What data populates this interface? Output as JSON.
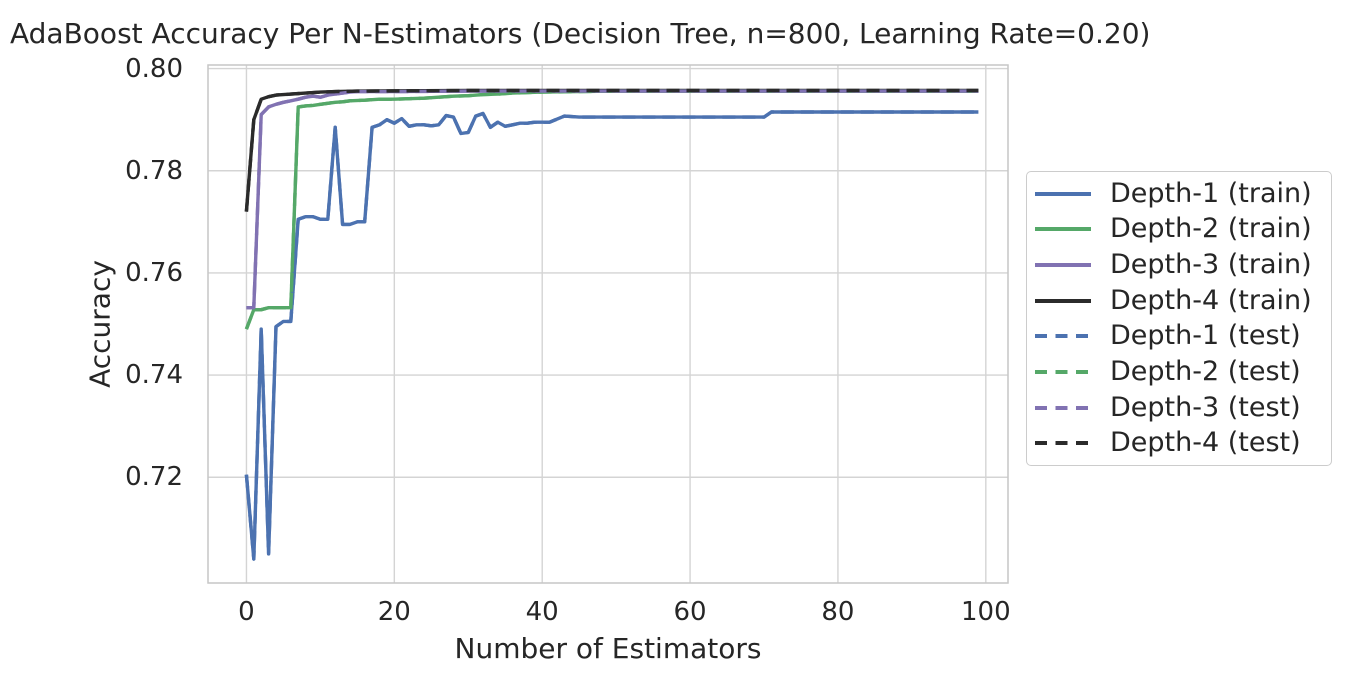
{
  "chart_data": {
    "type": "line",
    "title": "AdaBoost Accuracy Per N-Estimators (Decision Tree, n=800, Learning Rate=0.20)",
    "xlabel": "Number of Estimators",
    "ylabel": "Accuracy",
    "xlim": [
      -5.2,
      103
    ],
    "ylim": [
      0.6993,
      0.8007
    ],
    "xticks": [
      0,
      20,
      40,
      60,
      80,
      100
    ],
    "xtick_labels": [
      "0",
      "20",
      "40",
      "60",
      "80",
      "100"
    ],
    "yticks": [
      0.72,
      0.74,
      0.76,
      0.78,
      0.8
    ],
    "ytick_labels": [
      "0.72",
      "0.74",
      "0.76",
      "0.78",
      "0.80"
    ],
    "grid": true,
    "legend_position": "right-outside",
    "style": {
      "text_color": "#262626",
      "grid_color": "#d4d4d4",
      "spine_color": "#c6c6c6",
      "background": "#ffffff",
      "legend_border": "#cccccc"
    },
    "series": [
      {
        "name": "Depth-1 (train)",
        "color": "#4C72B0",
        "dash": false,
        "role": "train",
        "points": [
          [
            0,
            0.7205
          ],
          [
            1,
            0.704
          ],
          [
            2,
            0.749
          ],
          [
            3,
            0.705
          ],
          [
            4,
            0.7495
          ],
          [
            5,
            0.7505
          ],
          [
            6,
            0.7505
          ],
          [
            7,
            0.7705
          ],
          [
            8,
            0.771
          ],
          [
            9,
            0.771
          ],
          [
            10,
            0.7705
          ],
          [
            11,
            0.7705
          ],
          [
            12,
            0.7885
          ],
          [
            13,
            0.7695
          ],
          [
            14,
            0.7695
          ],
          [
            15,
            0.77
          ],
          [
            16,
            0.77
          ],
          [
            17,
            0.7885
          ],
          [
            18,
            0.789
          ],
          [
            19,
            0.79
          ],
          [
            20,
            0.7893
          ],
          [
            21,
            0.7902
          ],
          [
            22,
            0.7887
          ],
          [
            23,
            0.789
          ],
          [
            24,
            0.789
          ],
          [
            25,
            0.7888
          ],
          [
            26,
            0.789
          ],
          [
            27,
            0.7908
          ],
          [
            28,
            0.7905
          ],
          [
            29,
            0.7873
          ],
          [
            30,
            0.7875
          ],
          [
            31,
            0.7907
          ],
          [
            32,
            0.7912
          ],
          [
            33,
            0.7885
          ],
          [
            34,
            0.7895
          ],
          [
            35,
            0.7887
          ],
          [
            36,
            0.789
          ],
          [
            37,
            0.7893
          ],
          [
            38,
            0.7893
          ],
          [
            39,
            0.7895
          ],
          [
            41,
            0.7895
          ],
          [
            43,
            0.7907
          ],
          [
            45,
            0.7905
          ],
          [
            48,
            0.7905
          ],
          [
            52,
            0.7905
          ],
          [
            56,
            0.7905
          ],
          [
            60,
            0.7905
          ],
          [
            64,
            0.7905
          ],
          [
            68,
            0.7905
          ],
          [
            70,
            0.7905
          ],
          [
            71,
            0.7915
          ],
          [
            75,
            0.7915
          ],
          [
            80,
            0.7915
          ],
          [
            85,
            0.7915
          ],
          [
            90,
            0.7915
          ],
          [
            95,
            0.7915
          ],
          [
            99,
            0.7915
          ]
        ]
      },
      {
        "name": "Depth-2 (train)",
        "color": "#55A868",
        "dash": false,
        "role": "train",
        "points": [
          [
            0,
            0.749
          ],
          [
            1,
            0.7528
          ],
          [
            2,
            0.7528
          ],
          [
            3,
            0.7532
          ],
          [
            4,
            0.7532
          ],
          [
            5,
            0.7532
          ],
          [
            6,
            0.7532
          ],
          [
            7,
            0.7925
          ],
          [
            8,
            0.7927
          ],
          [
            9,
            0.7928
          ],
          [
            10,
            0.793
          ],
          [
            11,
            0.7932
          ],
          [
            12,
            0.7934
          ],
          [
            13,
            0.7935
          ],
          [
            14,
            0.7937
          ],
          [
            16,
            0.7938
          ],
          [
            18,
            0.794
          ],
          [
            20,
            0.794
          ],
          [
            22,
            0.7941
          ],
          [
            24,
            0.7942
          ],
          [
            26,
            0.7944
          ],
          [
            28,
            0.7946
          ],
          [
            30,
            0.7947
          ],
          [
            32,
            0.7949
          ],
          [
            34,
            0.795
          ],
          [
            36,
            0.7952
          ],
          [
            38,
            0.7953
          ],
          [
            40,
            0.7954
          ],
          [
            45,
            0.7955
          ],
          [
            50,
            0.7956
          ],
          [
            60,
            0.7956
          ],
          [
            70,
            0.7956
          ],
          [
            80,
            0.7956
          ],
          [
            90,
            0.7956
          ],
          [
            99,
            0.7956
          ]
        ]
      },
      {
        "name": "Depth-3 (train)",
        "color": "#8172B2",
        "dash": false,
        "role": "train",
        "points": [
          [
            0,
            0.7532
          ],
          [
            1,
            0.7532
          ],
          [
            2,
            0.791
          ],
          [
            3,
            0.7925
          ],
          [
            4,
            0.793
          ],
          [
            5,
            0.7934
          ],
          [
            6,
            0.7937
          ],
          [
            7,
            0.794
          ],
          [
            8,
            0.7944
          ],
          [
            9,
            0.7946
          ],
          [
            10,
            0.7944
          ],
          [
            11,
            0.7948
          ],
          [
            12,
            0.795
          ],
          [
            13,
            0.7952
          ],
          [
            14,
            0.7954
          ],
          [
            15,
            0.7955
          ],
          [
            20,
            0.7955
          ],
          [
            30,
            0.7956
          ],
          [
            50,
            0.7956
          ],
          [
            99,
            0.7956
          ]
        ]
      },
      {
        "name": "Depth-4 (train)",
        "color": "#2b2b2b",
        "dash": false,
        "role": "train",
        "points": [
          [
            0,
            0.772
          ],
          [
            1,
            0.79
          ],
          [
            2,
            0.794
          ],
          [
            3,
            0.7945
          ],
          [
            4,
            0.7948
          ],
          [
            5,
            0.7949
          ],
          [
            6,
            0.795
          ],
          [
            8,
            0.7952
          ],
          [
            10,
            0.7954
          ],
          [
            12,
            0.7955
          ],
          [
            15,
            0.7956
          ],
          [
            30,
            0.7957
          ],
          [
            50,
            0.7957
          ],
          [
            99,
            0.7957
          ]
        ]
      },
      {
        "name": "Depth-1 (test)",
        "color": "#4C72B0",
        "dash": true,
        "role": "test",
        "points": [
          [
            0,
            0.7205
          ],
          [
            1,
            0.704
          ],
          [
            2,
            0.749
          ],
          [
            3,
            0.705
          ],
          [
            4,
            0.7495
          ],
          [
            5,
            0.7505
          ],
          [
            6,
            0.7505
          ],
          [
            7,
            0.7705
          ],
          [
            8,
            0.771
          ],
          [
            9,
            0.771
          ],
          [
            10,
            0.7705
          ],
          [
            11,
            0.7705
          ],
          [
            12,
            0.7885
          ],
          [
            13,
            0.7695
          ],
          [
            14,
            0.7695
          ],
          [
            15,
            0.77
          ],
          [
            16,
            0.77
          ],
          [
            17,
            0.7885
          ],
          [
            18,
            0.789
          ],
          [
            19,
            0.79
          ],
          [
            20,
            0.7893
          ],
          [
            21,
            0.7902
          ],
          [
            22,
            0.7887
          ],
          [
            23,
            0.789
          ],
          [
            24,
            0.789
          ],
          [
            25,
            0.7888
          ],
          [
            26,
            0.789
          ],
          [
            27,
            0.7908
          ],
          [
            28,
            0.7905
          ],
          [
            29,
            0.7873
          ],
          [
            30,
            0.7875
          ],
          [
            31,
            0.7907
          ],
          [
            32,
            0.7912
          ],
          [
            33,
            0.7885
          ],
          [
            34,
            0.7895
          ],
          [
            35,
            0.7887
          ],
          [
            36,
            0.789
          ],
          [
            37,
            0.7893
          ],
          [
            38,
            0.7893
          ],
          [
            39,
            0.7895
          ],
          [
            41,
            0.7895
          ],
          [
            43,
            0.7907
          ],
          [
            45,
            0.7905
          ],
          [
            48,
            0.7905
          ],
          [
            52,
            0.7905
          ],
          [
            56,
            0.7905
          ],
          [
            60,
            0.7905
          ],
          [
            64,
            0.7905
          ],
          [
            68,
            0.7905
          ],
          [
            70,
            0.7905
          ],
          [
            71,
            0.7915
          ],
          [
            75,
            0.7915
          ],
          [
            80,
            0.7915
          ],
          [
            85,
            0.7915
          ],
          [
            90,
            0.7915
          ],
          [
            95,
            0.7915
          ],
          [
            99,
            0.7915
          ]
        ]
      },
      {
        "name": "Depth-2 (test)",
        "color": "#55A868",
        "dash": true,
        "role": "test",
        "points": [
          [
            0,
            0.749
          ],
          [
            1,
            0.7528
          ],
          [
            2,
            0.7528
          ],
          [
            3,
            0.7532
          ],
          [
            4,
            0.7532
          ],
          [
            5,
            0.7532
          ],
          [
            6,
            0.7532
          ],
          [
            7,
            0.7925
          ],
          [
            8,
            0.7927
          ],
          [
            9,
            0.7928
          ],
          [
            10,
            0.793
          ],
          [
            11,
            0.7932
          ],
          [
            12,
            0.7934
          ],
          [
            13,
            0.7935
          ],
          [
            14,
            0.7937
          ],
          [
            16,
            0.7938
          ],
          [
            18,
            0.794
          ],
          [
            20,
            0.794
          ],
          [
            22,
            0.7941
          ],
          [
            24,
            0.7942
          ],
          [
            26,
            0.7944
          ],
          [
            28,
            0.7946
          ],
          [
            30,
            0.7947
          ],
          [
            32,
            0.7949
          ],
          [
            34,
            0.795
          ],
          [
            36,
            0.7952
          ],
          [
            38,
            0.7953
          ],
          [
            40,
            0.7954
          ],
          [
            45,
            0.7955
          ],
          [
            50,
            0.7956
          ],
          [
            60,
            0.7956
          ],
          [
            70,
            0.7956
          ],
          [
            80,
            0.7956
          ],
          [
            90,
            0.7956
          ],
          [
            99,
            0.7956
          ]
        ]
      },
      {
        "name": "Depth-3 (test)",
        "color": "#8172B2",
        "dash": true,
        "role": "test",
        "points": [
          [
            0,
            0.7532
          ],
          [
            1,
            0.7532
          ],
          [
            2,
            0.791
          ],
          [
            3,
            0.7925
          ],
          [
            4,
            0.793
          ],
          [
            5,
            0.7934
          ],
          [
            6,
            0.7937
          ],
          [
            7,
            0.794
          ],
          [
            8,
            0.7944
          ],
          [
            9,
            0.7946
          ],
          [
            10,
            0.7944
          ],
          [
            11,
            0.7948
          ],
          [
            12,
            0.795
          ],
          [
            13,
            0.7952
          ],
          [
            14,
            0.7954
          ],
          [
            15,
            0.7955
          ],
          [
            20,
            0.7955
          ],
          [
            30,
            0.7956
          ],
          [
            50,
            0.7956
          ],
          [
            99,
            0.7956
          ]
        ]
      },
      {
        "name": "Depth-4 (test)",
        "color": "#2b2b2b",
        "dash": true,
        "role": "test",
        "points": [
          [
            0,
            0.772
          ],
          [
            1,
            0.79
          ],
          [
            2,
            0.794
          ],
          [
            3,
            0.7945
          ],
          [
            4,
            0.7948
          ],
          [
            5,
            0.7949
          ],
          [
            6,
            0.795
          ],
          [
            8,
            0.7952
          ],
          [
            10,
            0.7954
          ],
          [
            12,
            0.7955
          ],
          [
            15,
            0.7956
          ],
          [
            30,
            0.7957
          ],
          [
            50,
            0.7957
          ],
          [
            99,
            0.7957
          ]
        ]
      }
    ]
  }
}
